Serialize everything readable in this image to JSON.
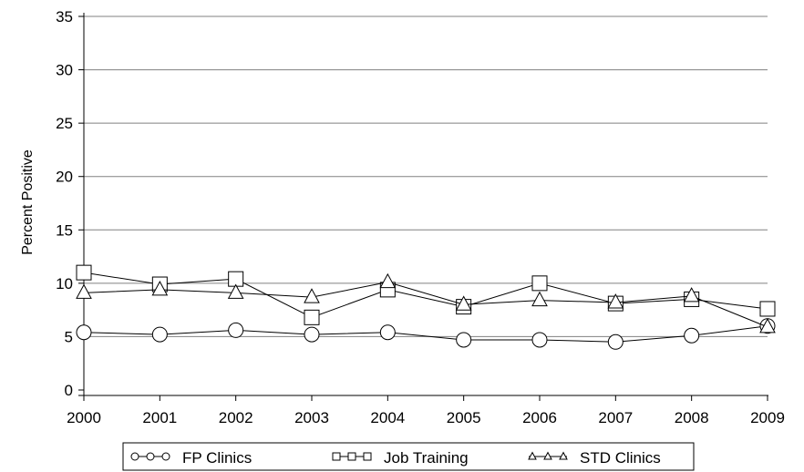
{
  "chart_data": {
    "type": "line",
    "title": "",
    "xlabel": "",
    "ylabel": "Percent Positive",
    "x": [
      "2000",
      "2001",
      "2002",
      "2003",
      "2004",
      "2005",
      "2006",
      "2007",
      "2008",
      "2009"
    ],
    "ylim": [
      0,
      35
    ],
    "yticks": [
      "0",
      "5",
      "10",
      "15",
      "20",
      "25",
      "30",
      "35"
    ],
    "grid": "horizontal",
    "legend_position": "bottom",
    "series": [
      {
        "name": "FP Clinics",
        "marker": "circle",
        "values": [
          5.4,
          5.2,
          5.6,
          5.2,
          5.4,
          4.7,
          4.7,
          4.5,
          5.1,
          6.0
        ]
      },
      {
        "name": "Job Training",
        "marker": "square",
        "values": [
          11.0,
          9.9,
          10.4,
          6.8,
          9.4,
          7.8,
          10.0,
          8.1,
          8.5,
          7.6
        ]
      },
      {
        "name": "STD Clinics",
        "marker": "triangle",
        "values": [
          9.1,
          9.4,
          9.1,
          8.7,
          10.1,
          8.0,
          8.4,
          8.2,
          8.8,
          5.9
        ]
      }
    ],
    "colors": {
      "line": "#000000",
      "grid": "#808080",
      "marker_fill": "#ffffff"
    }
  }
}
